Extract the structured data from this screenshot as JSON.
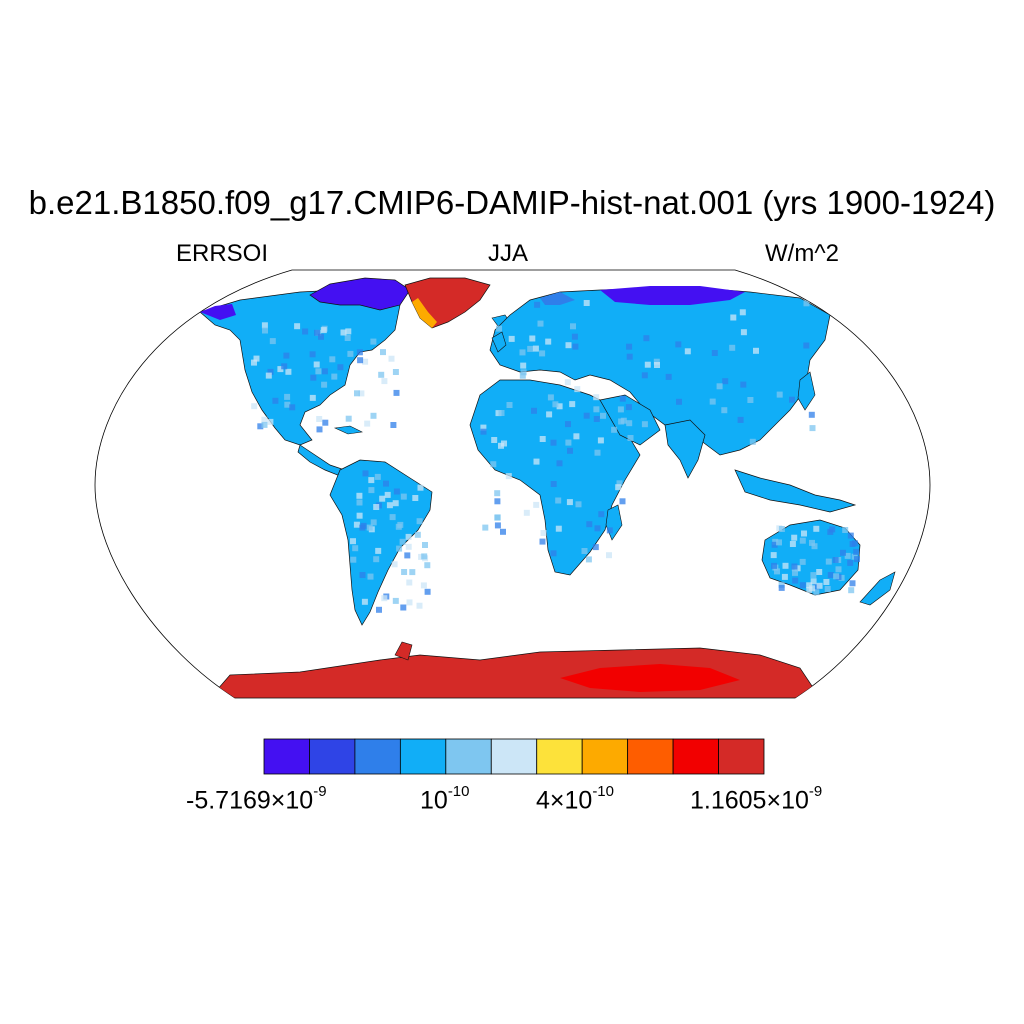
{
  "title": "b.e21.B1850.f09_g17.CMIP6-DAMIP-hist-nat.001 (yrs 1900-1924)",
  "left_label": "ERRSOI",
  "center_label": "JJA",
  "right_label": "W/m^2",
  "colorbar": {
    "colors": [
      "#4410f2",
      "#2f44e6",
      "#2f7fea",
      "#11aef7",
      "#7ec6f0",
      "#cce6f7",
      "#fde23a",
      "#fdaa00",
      "#fe5d00",
      "#f20000",
      "#d42a27"
    ],
    "labels": [
      {
        "base": "-5.7169×10",
        "exp": "-9"
      },
      {
        "base": "10",
        "exp": "-10"
      },
      {
        "base": "4×10",
        "exp": "-10"
      },
      {
        "base": "1.1605×10",
        "exp": "-9"
      }
    ]
  },
  "map": {
    "projection": "Robinson",
    "region_colors": {
      "land_default": "#11aef7",
      "high_arctic": "#4410f2",
      "greenland": "#d42a27",
      "antarctica": "#d42a27",
      "antarctica_core": "#f20000",
      "speckle": "#7ec6f0"
    }
  }
}
